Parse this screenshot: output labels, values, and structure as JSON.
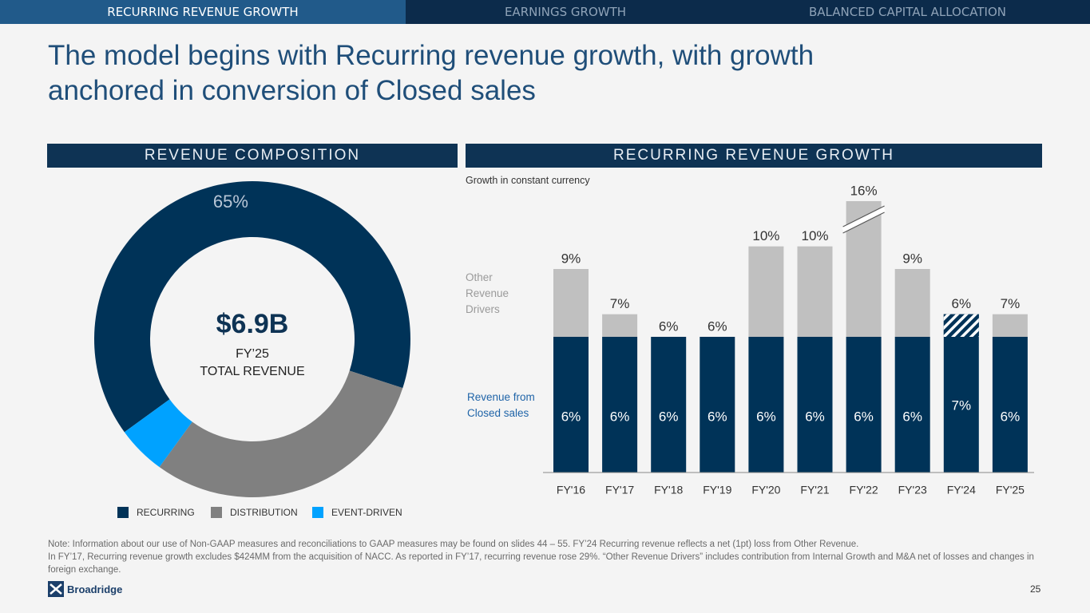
{
  "nav": [
    "RECURRING REVENUE GROWTH",
    "EARNINGS GROWTH",
    "BALANCED CAPITAL ALLOCATION"
  ],
  "title": [
    "The model begins with Recurring revenue growth, with growth",
    "anchored in conversion of Closed sales"
  ],
  "chart_data": [
    {
      "type": "pie",
      "donut": true,
      "section_title": "REVENUE COMPOSITION",
      "categories": [
        "RECURRING",
        "DISTRIBUTION",
        "EVENT-DRIVEN"
      ],
      "values": [
        65,
        30,
        5
      ],
      "value_labels": [
        "65%",
        null,
        null
      ],
      "colors": [
        "#003358",
        "#808080",
        "#00a2ff"
      ],
      "center_value": "$6.9B",
      "center_label": [
        "FY’25",
        "TOTAL REVENUE"
      ],
      "legend": "bottom"
    },
    {
      "type": "bar",
      "stacked": true,
      "section_title": "RECURRING REVENUE GROWTH",
      "subtitle": "Growth in constant currency",
      "categories": [
        "FY'16",
        "FY'17",
        "FY'18",
        "FY'19",
        "FY'20",
        "FY'21",
        "FY'22",
        "FY'23",
        "FY'24",
        "FY'25"
      ],
      "series": [
        {
          "name": "Revenue from Closed sales",
          "color": "#003358",
          "values": [
            6,
            6,
            6,
            6,
            6,
            6,
            6,
            6,
            7,
            6
          ],
          "value_labels": [
            "6%",
            "6%",
            "6%",
            "6%",
            "6%",
            "6%",
            "6%",
            "6%",
            "7%",
            "6%"
          ]
        },
        {
          "name": "Other Revenue Drivers",
          "color": "#c0c0c0",
          "values": [
            3,
            1,
            0,
            0,
            4,
            4,
            10,
            3,
            -1,
            1
          ]
        }
      ],
      "totals": {
        "values": [
          9,
          7,
          6,
          6,
          10,
          10,
          16,
          9,
          6,
          7
        ],
        "value_labels": [
          "9%",
          "7%",
          "6%",
          "6%",
          "10%",
          "10%",
          "16%",
          "9%",
          "6%",
          "7%"
        ]
      },
      "ylim": [
        0,
        12
      ],
      "axis_break": true,
      "negative_pattern": "hatch"
    }
  ],
  "notes": [
    "Note: Information about our use of Non-GAAP measures and reconciliations to GAAP measures may be found on slides 44 – 55. FY’24 Recurring revenue reflects a net (1pt) loss from Other Revenue.",
    "In FY’17, Recurring revenue growth excludes $424MM from the acquisition of NACC. As reported in FY’17, recurring revenue rose 29%. “Other Revenue Drivers” includes contribution from Internal Growth and M&A net of losses and changes in foreign exchange."
  ],
  "logo": "Broadridge",
  "page_number": "25"
}
